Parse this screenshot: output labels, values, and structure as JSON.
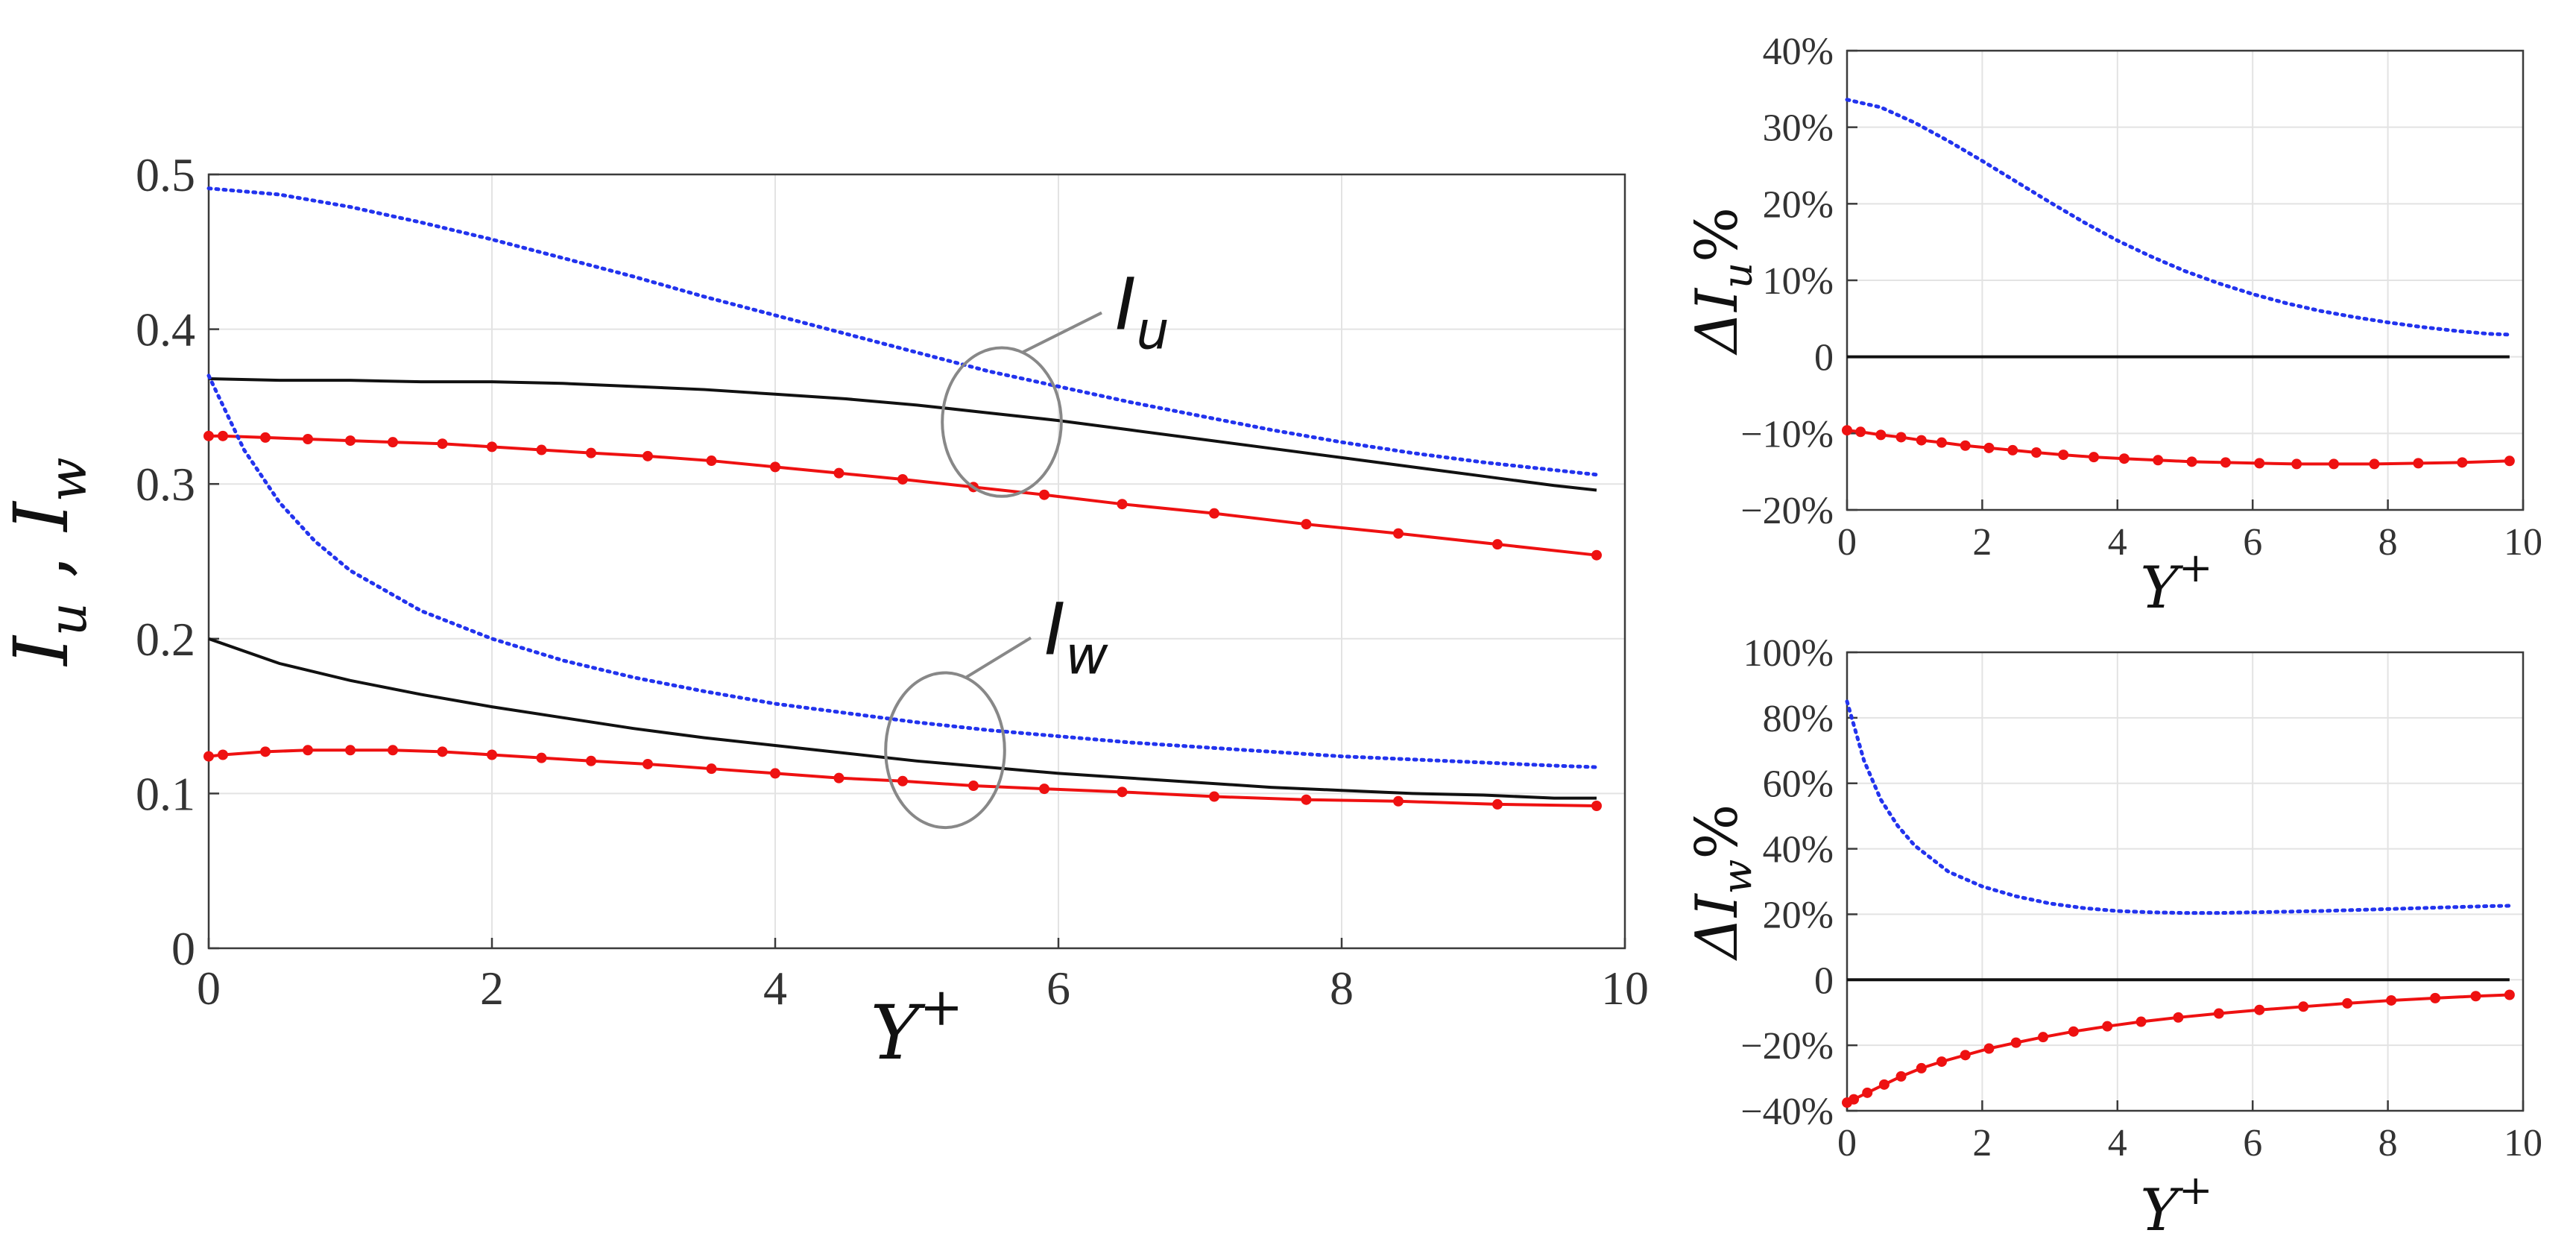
{
  "chart_data": [
    {
      "id": "main",
      "type": "line",
      "xlabel": "Y",
      "xlabel_sup": "+",
      "ylabel": "I",
      "ylabel_parts": [
        "u",
        " , ",
        "w"
      ],
      "xlim": [
        0,
        10
      ],
      "ylim": [
        0,
        0.5
      ],
      "xticks": [
        0,
        2,
        4,
        6,
        8,
        10
      ],
      "xtick_labels": [
        "0",
        "2",
        "4",
        "6",
        "8",
        "10"
      ],
      "yticks": [
        0,
        0.1,
        0.2,
        0.3,
        0.4,
        0.5
      ],
      "ytick_labels": [
        "0",
        "0.1",
        "0.2",
        "0.3",
        "0.4",
        "0.5"
      ],
      "grid": true,
      "annotations": [
        {
          "text": "I",
          "sub": "u",
          "ellipse_center": [
            5.6,
            0.34
          ],
          "ellipse_r": [
            0.42,
            0.048
          ],
          "label_at": [
            6.4,
            0.4
          ]
        },
        {
          "text": "I",
          "sub": "w",
          "ellipse_center": [
            5.2,
            0.128
          ],
          "ellipse_r": [
            0.42,
            0.05
          ],
          "label_at": [
            5.9,
            0.19
          ]
        }
      ],
      "series": [
        {
          "name": "Iu blue dotted",
          "style": "dotted",
          "color": "#2233ee",
          "x": [
            0,
            0.5,
            1,
            1.5,
            2,
            2.5,
            3,
            3.5,
            4,
            4.5,
            5,
            5.5,
            6,
            6.5,
            7,
            7.5,
            8,
            8.5,
            9,
            9.5,
            9.8
          ],
          "y": [
            0.491,
            0.487,
            0.479,
            0.469,
            0.458,
            0.446,
            0.434,
            0.421,
            0.409,
            0.397,
            0.385,
            0.373,
            0.363,
            0.353,
            0.344,
            0.335,
            0.327,
            0.32,
            0.314,
            0.309,
            0.306
          ]
        },
        {
          "name": "Iu black",
          "style": "solid",
          "color": "#111111",
          "x": [
            0,
            0.5,
            1,
            1.5,
            2,
            2.5,
            3,
            3.5,
            4,
            4.5,
            5,
            5.5,
            6,
            6.5,
            7,
            7.5,
            8,
            8.5,
            9,
            9.5,
            9.8
          ],
          "y": [
            0.368,
            0.367,
            0.367,
            0.366,
            0.366,
            0.365,
            0.363,
            0.361,
            0.358,
            0.355,
            0.351,
            0.346,
            0.341,
            0.335,
            0.329,
            0.323,
            0.317,
            0.311,
            0.305,
            0.299,
            0.296
          ]
        },
        {
          "name": "Iu red markers",
          "style": "solid-markers",
          "color": "#ee1111",
          "x": [
            0,
            0.1,
            0.4,
            0.7,
            1.0,
            1.3,
            1.65,
            2.0,
            2.35,
            2.7,
            3.1,
            3.55,
            4.0,
            4.45,
            4.9,
            5.4,
            5.9,
            6.45,
            7.1,
            7.75,
            8.4,
            9.1,
            9.8
          ],
          "y": [
            0.331,
            0.331,
            0.33,
            0.329,
            0.328,
            0.327,
            0.326,
            0.324,
            0.322,
            0.32,
            0.318,
            0.315,
            0.311,
            0.307,
            0.303,
            0.298,
            0.293,
            0.287,
            0.281,
            0.274,
            0.268,
            0.261,
            0.254
          ]
        },
        {
          "name": "Iw blue dotted",
          "style": "dotted",
          "color": "#2233ee",
          "x": [
            0,
            0.25,
            0.5,
            0.75,
            1,
            1.5,
            2,
            2.5,
            3,
            3.5,
            4,
            4.5,
            5,
            5.5,
            6,
            6.5,
            7,
            7.5,
            8,
            8.5,
            9,
            9.5,
            9.8
          ],
          "y": [
            0.37,
            0.322,
            0.288,
            0.263,
            0.244,
            0.218,
            0.2,
            0.186,
            0.175,
            0.166,
            0.158,
            0.152,
            0.146,
            0.141,
            0.137,
            0.133,
            0.13,
            0.127,
            0.124,
            0.122,
            0.12,
            0.118,
            0.117
          ]
        },
        {
          "name": "Iw black",
          "style": "solid",
          "color": "#111111",
          "x": [
            0,
            0.5,
            1,
            1.5,
            2,
            2.5,
            3,
            3.5,
            4,
            4.5,
            5,
            5.5,
            6,
            6.5,
            7,
            7.5,
            8,
            8.5,
            9,
            9.5,
            9.8
          ],
          "y": [
            0.2,
            0.184,
            0.173,
            0.164,
            0.156,
            0.149,
            0.142,
            0.136,
            0.131,
            0.126,
            0.121,
            0.117,
            0.113,
            0.11,
            0.107,
            0.104,
            0.102,
            0.1,
            0.099,
            0.097,
            0.097
          ]
        },
        {
          "name": "Iw red markers",
          "style": "solid-markers",
          "color": "#ee1111",
          "x": [
            0,
            0.1,
            0.4,
            0.7,
            1.0,
            1.3,
            1.65,
            2.0,
            2.35,
            2.7,
            3.1,
            3.55,
            4.0,
            4.45,
            4.9,
            5.4,
            5.9,
            6.45,
            7.1,
            7.75,
            8.4,
            9.1,
            9.8
          ],
          "y": [
            0.124,
            0.125,
            0.127,
            0.128,
            0.128,
            0.128,
            0.127,
            0.125,
            0.123,
            0.121,
            0.119,
            0.116,
            0.113,
            0.11,
            0.108,
            0.105,
            0.103,
            0.101,
            0.098,
            0.096,
            0.095,
            0.093,
            0.092
          ]
        }
      ]
    },
    {
      "id": "du",
      "type": "line",
      "xlabel": "Y",
      "xlabel_sup": "+",
      "ylabel": "ΔI",
      "ylabel_sub": "u",
      "ylabel_suffix": "%",
      "xlim": [
        0,
        10
      ],
      "ylim": [
        -20,
        40
      ],
      "xticks": [
        0,
        2,
        4,
        6,
        8,
        10
      ],
      "xtick_labels": [
        "0",
        "2",
        "4",
        "6",
        "8",
        "10"
      ],
      "yticks": [
        -20,
        -10,
        0,
        10,
        20,
        30,
        40
      ],
      "ytick_labels": [
        "−20%",
        "−10%",
        "0",
        "10%",
        "20%",
        "30%",
        "40%"
      ],
      "grid": true,
      "series": [
        {
          "name": "ΔIu blue dotted",
          "style": "dotted",
          "color": "#2233ee",
          "x": [
            0,
            0.5,
            1,
            1.5,
            2,
            2.5,
            3,
            3.5,
            4,
            4.5,
            5,
            5.5,
            6,
            6.5,
            7,
            7.5,
            8,
            8.5,
            9,
            9.5,
            9.8
          ],
          "y": [
            33.6,
            32.6,
            30.6,
            28.2,
            25.6,
            22.9,
            20.2,
            17.6,
            15.2,
            13.1,
            11.2,
            9.6,
            8.2,
            7.0,
            6.0,
            5.2,
            4.5,
            3.9,
            3.4,
            3.0,
            2.9
          ]
        },
        {
          "name": "ΔIu black",
          "style": "solid",
          "color": "#111111",
          "x": [
            0,
            9.8
          ],
          "y": [
            0,
            0
          ]
        },
        {
          "name": "ΔIu red markers",
          "style": "solid-markers",
          "color": "#ee1111",
          "x": [
            0,
            0.2,
            0.5,
            0.8,
            1.1,
            1.4,
            1.75,
            2.1,
            2.45,
            2.8,
            3.2,
            3.65,
            4.1,
            4.6,
            5.1,
            5.6,
            6.1,
            6.65,
            7.2,
            7.8,
            8.45,
            9.1,
            9.8
          ],
          "y": [
            -9.6,
            -9.8,
            -10.2,
            -10.5,
            -10.9,
            -11.2,
            -11.6,
            -11.9,
            -12.2,
            -12.5,
            -12.8,
            -13.1,
            -13.3,
            -13.5,
            -13.7,
            -13.8,
            -13.9,
            -14.0,
            -14.0,
            -14.0,
            -13.9,
            -13.8,
            -13.6
          ]
        }
      ]
    },
    {
      "id": "dw",
      "type": "line",
      "xlabel": "Y",
      "xlabel_sup": "+",
      "ylabel": "ΔI",
      "ylabel_sub": "w",
      "ylabel_suffix": "%",
      "xlim": [
        0,
        10
      ],
      "ylim": [
        -40,
        100
      ],
      "xticks": [
        0,
        2,
        4,
        6,
        8,
        10
      ],
      "xtick_labels": [
        "0",
        "2",
        "4",
        "6",
        "8",
        "10"
      ],
      "yticks": [
        -40,
        -20,
        0,
        20,
        40,
        60,
        80,
        100
      ],
      "ytick_labels": [
        "−40%",
        "−20%",
        "0",
        "20%",
        "40%",
        "60%",
        "80%",
        "100%"
      ],
      "grid": true,
      "series": [
        {
          "name": "ΔIw blue dotted",
          "style": "dotted",
          "color": "#2233ee",
          "x": [
            0,
            0.25,
            0.5,
            0.75,
            1,
            1.5,
            2,
            2.5,
            3,
            3.5,
            4,
            4.5,
            5,
            5.5,
            6,
            6.5,
            7,
            7.5,
            8,
            8.5,
            9,
            9.5,
            9.8
          ],
          "y": [
            85,
            67,
            55,
            47,
            41,
            33,
            28.5,
            25.5,
            23.3,
            21.9,
            21.0,
            20.6,
            20.4,
            20.4,
            20.6,
            20.8,
            21.0,
            21.3,
            21.6,
            21.9,
            22.2,
            22.5,
            22.6
          ]
        },
        {
          "name": "ΔIw black",
          "style": "solid",
          "color": "#111111",
          "x": [
            0,
            9.8
          ],
          "y": [
            0,
            0
          ]
        },
        {
          "name": "ΔIw red markers",
          "style": "solid-markers",
          "color": "#ee1111",
          "x": [
            0,
            0.1,
            0.3,
            0.55,
            0.8,
            1.1,
            1.4,
            1.75,
            2.1,
            2.5,
            2.9,
            3.35,
            3.85,
            4.35,
            4.9,
            5.5,
            6.1,
            6.75,
            7.4,
            8.05,
            8.7,
            9.3,
            9.8
          ],
          "y": [
            -37.5,
            -36.5,
            -34.5,
            -32,
            -29.5,
            -27,
            -25,
            -23,
            -21,
            -19.2,
            -17.5,
            -15.8,
            -14.2,
            -12.8,
            -11.5,
            -10.3,
            -9.2,
            -8.2,
            -7.2,
            -6.3,
            -5.6,
            -5.0,
            -4.6
          ]
        }
      ]
    }
  ]
}
